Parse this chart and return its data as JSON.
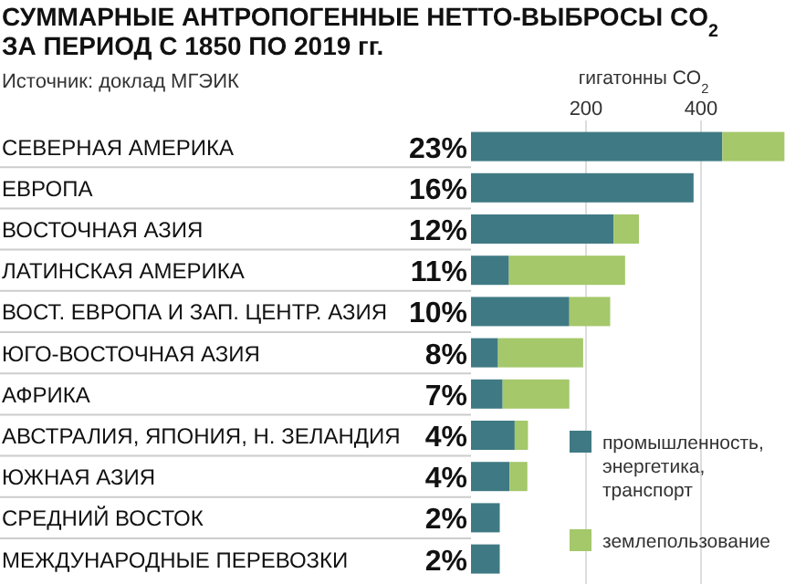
{
  "chart_data": {
    "type": "bar",
    "orientation": "horizontal",
    "stacked": true,
    "title": "СУММАРНЫЕ АНТРОПОГЕННЫЕ НЕТТО-ВЫБРОСЫ CO$_{2}$ ЗА ПЕРИОД С 1850 ПО 2019 гг.",
    "annotations": [
      "Источник: доклад МГЭИК"
    ],
    "xlabel": "гигатонны CO$_{2}$",
    "categories": [
      "СЕВЕРНАЯ АМЕРИКА",
      "ЕВРОПА",
      "ВОСТОЧНАЯ АЗИЯ",
      "ЛАТИНСКАЯ АМЕРИКА",
      "ВОСТ. ЕВРОПА И ЗАП. ЦЕНТР. АЗИЯ",
      "ЮГО-ВОСТОЧНАЯ АЗИЯ",
      "АФРИКА",
      "АВСТРАЛИЯ, ЯПОНИЯ, Н. ЗЕЛАНДИЯ",
      "ЮЖНАЯ АЗИЯ",
      "СРЕДНИЙ ВОСТОК",
      "МЕЖДУНАРОДНЫЕ ПЕРЕВОЗКИ"
    ],
    "value_labels": [
      "23%",
      "16%",
      "12%",
      "11%",
      "10%",
      "8%",
      "7%",
      "4%",
      "4%",
      "2%",
      "2%"
    ],
    "series": [
      {
        "name": "промышленность, энергетика, транспорт",
        "color": "#3f7a84",
        "values": [
          437,
          387,
          248,
          66,
          171,
          47,
          55,
          76,
          67,
          50,
          50
        ]
      },
      {
        "name": "землепользование",
        "color": "#a4c86a",
        "values": [
          108,
          null,
          44,
          202,
          71,
          148,
          116,
          23,
          31,
          null,
          null
        ]
      }
    ],
    "xlim": [
      0,
      546
    ],
    "xticks": [
      200,
      400
    ],
    "grid": "x",
    "legend": "bottom right"
  }
}
